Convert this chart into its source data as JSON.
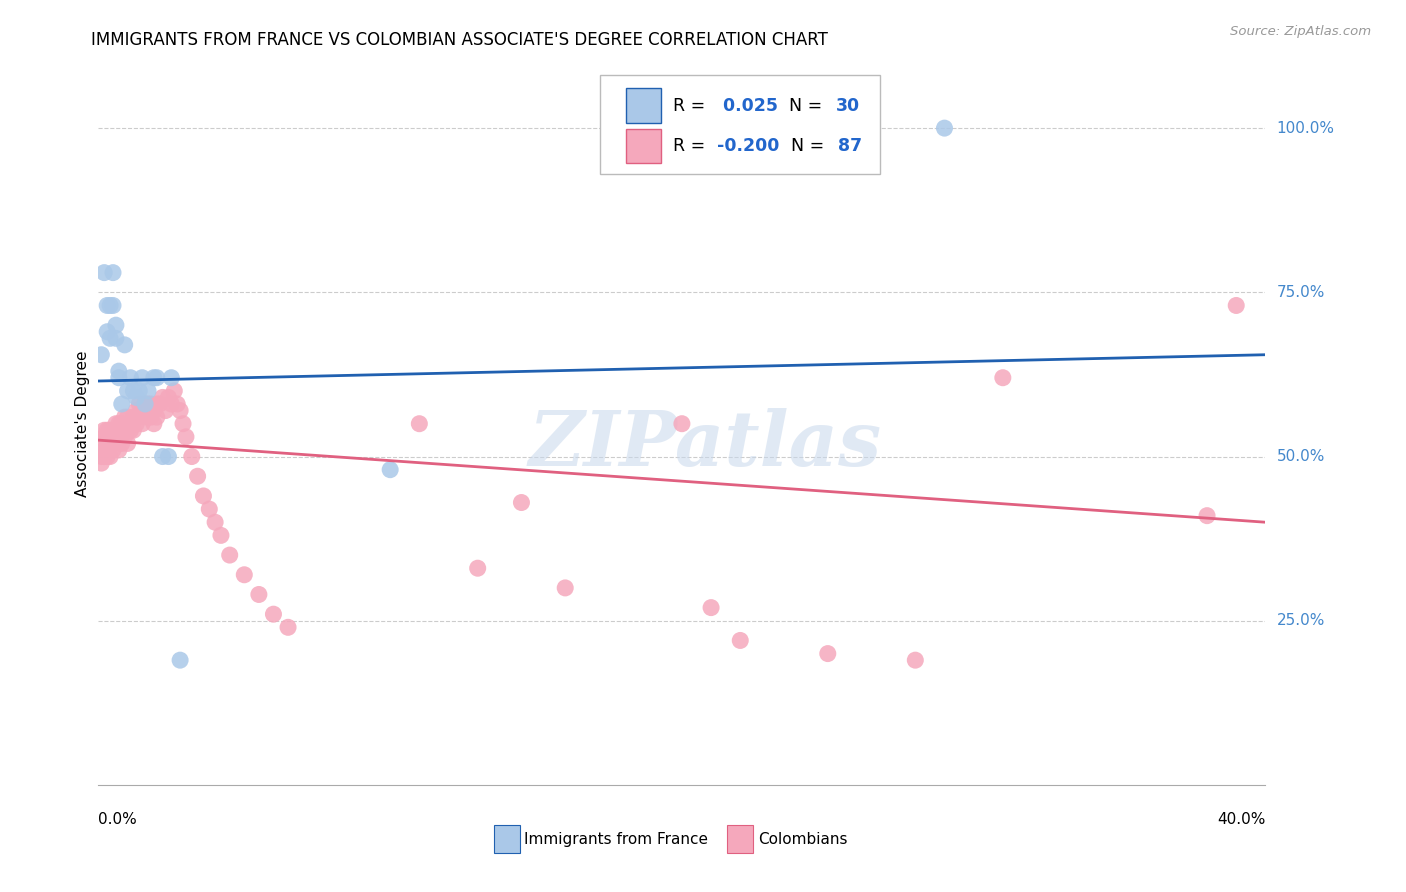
{
  "title": "IMMIGRANTS FROM FRANCE VS COLOMBIAN ASSOCIATE'S DEGREE CORRELATION CHART",
  "source": "Source: ZipAtlas.com",
  "ylabel": "Associate's Degree",
  "ytick_labels": [
    "25.0%",
    "50.0%",
    "75.0%",
    "100.0%"
  ],
  "ytick_positions": [
    0.25,
    0.5,
    0.75,
    1.0
  ],
  "xlim": [
    0.0,
    0.4
  ],
  "ylim": [
    0.0,
    1.1
  ],
  "france_R": 0.025,
  "france_N": 30,
  "colombia_R": -0.2,
  "colombia_N": 87,
  "france_color": "#aac8e8",
  "colombia_color": "#f5a8bc",
  "france_line_color": "#2060b0",
  "colombia_line_color": "#e06080",
  "watermark": "ZIPatlas",
  "france_points_x": [
    0.001,
    0.002,
    0.003,
    0.003,
    0.004,
    0.004,
    0.005,
    0.005,
    0.006,
    0.006,
    0.007,
    0.007,
    0.008,
    0.009,
    0.01,
    0.011,
    0.012,
    0.013,
    0.014,
    0.015,
    0.016,
    0.017,
    0.019,
    0.02,
    0.022,
    0.024,
    0.025,
    0.028,
    0.1,
    0.29
  ],
  "france_points_y": [
    0.655,
    0.78,
    0.73,
    0.69,
    0.73,
    0.68,
    0.78,
    0.73,
    0.68,
    0.7,
    0.63,
    0.62,
    0.58,
    0.67,
    0.6,
    0.62,
    0.6,
    0.59,
    0.6,
    0.62,
    0.58,
    0.6,
    0.62,
    0.62,
    0.5,
    0.5,
    0.62,
    0.19,
    0.48,
    1.0
  ],
  "colombia_points_x": [
    0.001,
    0.001,
    0.001,
    0.002,
    0.002,
    0.002,
    0.002,
    0.003,
    0.003,
    0.003,
    0.003,
    0.004,
    0.004,
    0.004,
    0.004,
    0.005,
    0.005,
    0.005,
    0.005,
    0.006,
    0.006,
    0.006,
    0.007,
    0.007,
    0.007,
    0.007,
    0.008,
    0.008,
    0.008,
    0.009,
    0.009,
    0.009,
    0.01,
    0.01,
    0.01,
    0.011,
    0.011,
    0.012,
    0.012,
    0.013,
    0.013,
    0.014,
    0.014,
    0.015,
    0.015,
    0.016,
    0.017,
    0.017,
    0.018,
    0.018,
    0.019,
    0.019,
    0.02,
    0.02,
    0.021,
    0.022,
    0.023,
    0.024,
    0.025,
    0.026,
    0.027,
    0.028,
    0.029,
    0.03,
    0.032,
    0.034,
    0.036,
    0.038,
    0.04,
    0.042,
    0.045,
    0.05,
    0.055,
    0.06,
    0.065,
    0.11,
    0.13,
    0.145,
    0.16,
    0.2,
    0.21,
    0.22,
    0.25,
    0.28,
    0.31,
    0.38,
    0.39
  ],
  "colombia_points_y": [
    0.52,
    0.5,
    0.49,
    0.54,
    0.53,
    0.51,
    0.5,
    0.54,
    0.53,
    0.52,
    0.5,
    0.54,
    0.53,
    0.52,
    0.5,
    0.54,
    0.53,
    0.52,
    0.51,
    0.55,
    0.54,
    0.53,
    0.55,
    0.54,
    0.53,
    0.51,
    0.55,
    0.54,
    0.52,
    0.56,
    0.54,
    0.53,
    0.56,
    0.54,
    0.52,
    0.55,
    0.54,
    0.56,
    0.54,
    0.57,
    0.55,
    0.58,
    0.56,
    0.57,
    0.55,
    0.58,
    0.58,
    0.56,
    0.58,
    0.56,
    0.57,
    0.55,
    0.58,
    0.56,
    0.58,
    0.59,
    0.57,
    0.59,
    0.58,
    0.6,
    0.58,
    0.57,
    0.55,
    0.53,
    0.5,
    0.47,
    0.44,
    0.42,
    0.4,
    0.38,
    0.35,
    0.32,
    0.29,
    0.26,
    0.24,
    0.55,
    0.33,
    0.43,
    0.3,
    0.55,
    0.27,
    0.22,
    0.2,
    0.19,
    0.62,
    0.41,
    0.73
  ]
}
